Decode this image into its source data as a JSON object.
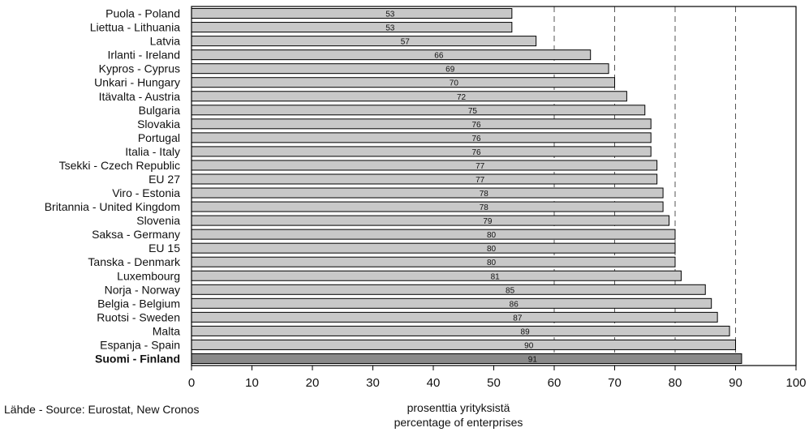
{
  "chart_data": {
    "type": "bar",
    "orientation": "horizontal",
    "categories": [
      "Puola - Poland",
      "Liettua - Lithuania",
      "Latvia",
      "Irlanti - Ireland",
      "Kypros - Cyprus",
      "Unkari - Hungary",
      "Itävalta - Austria",
      "Bulgaria",
      "Slovakia",
      "Portugal",
      "Italia - Italy",
      "Tsekki - Czech Republic",
      "EU 27",
      "Viro - Estonia",
      "Britannia - United Kingdom",
      "Slovenia",
      "Saksa - Germany",
      "EU 15",
      "Tanska - Denmark",
      "Luxembourg",
      "Norja - Norway",
      "Belgia - Belgium",
      "Ruotsi - Sweden",
      "Malta",
      "Espanja - Spain",
      "Suomi - Finland"
    ],
    "values": [
      53,
      53,
      57,
      66,
      69,
      70,
      72,
      75,
      76,
      76,
      76,
      77,
      77,
      78,
      78,
      79,
      80,
      80,
      80,
      81,
      85,
      86,
      87,
      89,
      90,
      91
    ],
    "highlight": "Suomi - Finland",
    "xlim": [
      0,
      100
    ],
    "xticks": [
      0,
      10,
      20,
      30,
      40,
      50,
      60,
      70,
      80,
      90,
      100
    ],
    "xlabel": [
      "prosenttia yrityksistä",
      "percentage of enterprises"
    ],
    "gridlines": [
      60,
      70,
      80,
      90
    ],
    "grid": "dashed vertical",
    "colors": {
      "bar": "#c8c8c8",
      "highlight_bar": "#8a8a8a",
      "edge": "#000000"
    }
  },
  "source": "Lähde - Source: Eurostat, New Cronos"
}
